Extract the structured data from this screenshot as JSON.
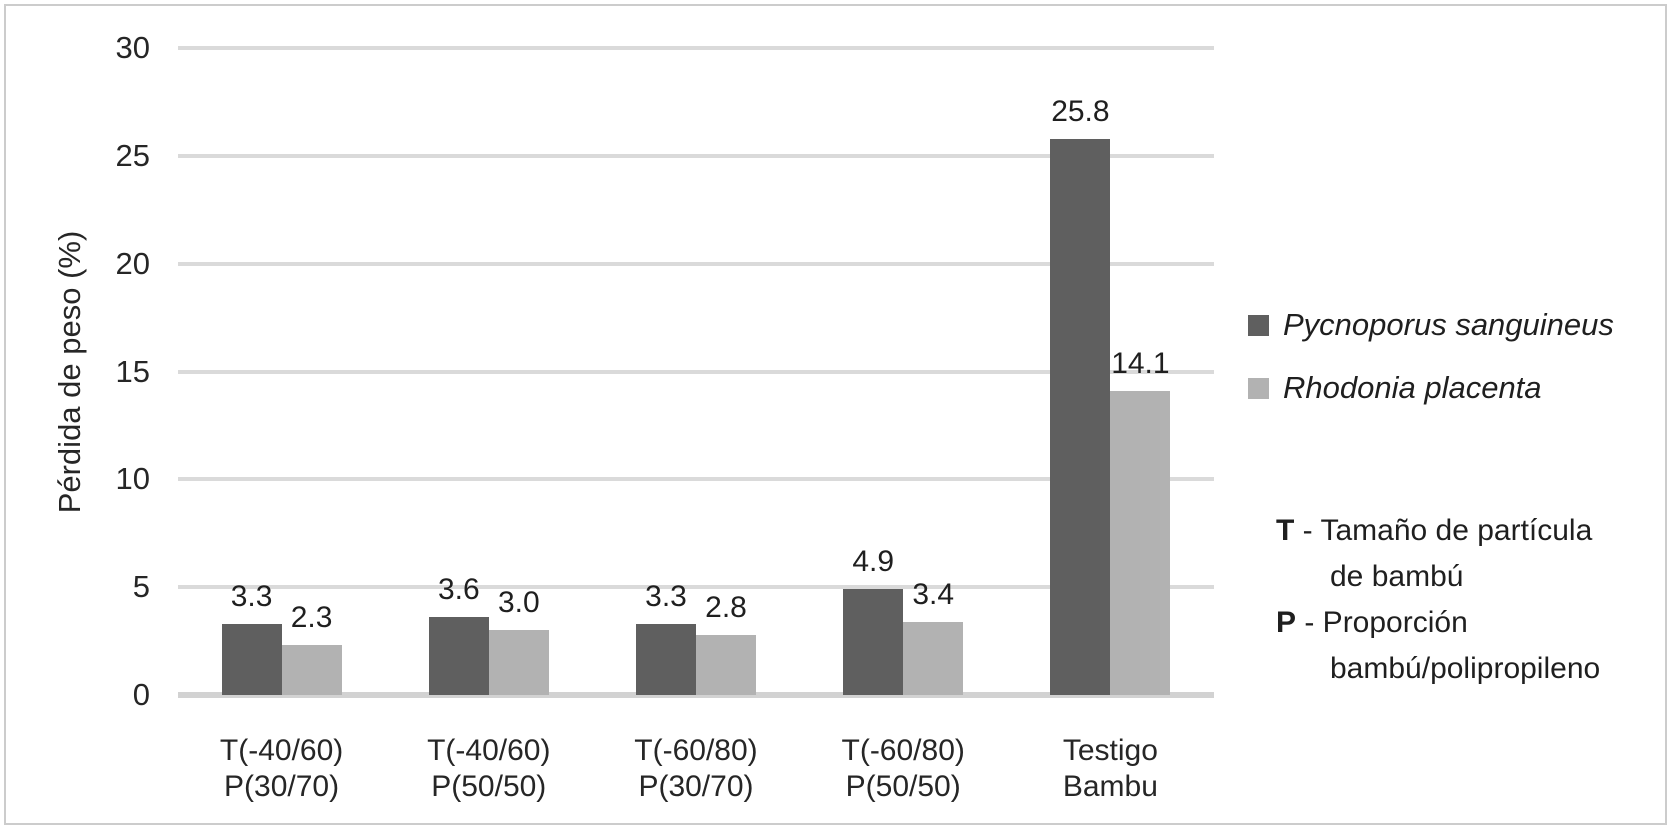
{
  "chart_data": {
    "type": "bar",
    "title": "",
    "xlabel": "",
    "ylabel": "Pérdida de peso (%)",
    "ylim": [
      0,
      30
    ],
    "ytick_step": 5,
    "grid": "horizontal",
    "legend_position": "right",
    "value_label_decimals": 1,
    "categories": [
      {
        "lines": [
          "T(-40/60)",
          "P(30/70)"
        ]
      },
      {
        "lines": [
          "T(-40/60)",
          "P(50/50)"
        ]
      },
      {
        "lines": [
          "T(-60/80)",
          "P(30/70)"
        ]
      },
      {
        "lines": [
          "T(-60/80)",
          "P(50/50)"
        ]
      },
      {
        "lines": [
          "Testigo",
          "Bambu"
        ]
      }
    ],
    "series": [
      {
        "name": "Pycnoporus sanguineus",
        "color": "#5F5F5F",
        "values": [
          3.3,
          3.6,
          3.3,
          4.9,
          25.8
        ]
      },
      {
        "name": "Rhodonia placenta",
        "color": "#B2B2B2",
        "values": [
          2.3,
          3.0,
          2.8,
          3.4,
          14.1
        ]
      }
    ]
  },
  "notes": {
    "items": [
      {
        "term": "T",
        "text1": "- Tamaño de partícula",
        "text2": "de bambú"
      },
      {
        "term": "P",
        "text1": "- Proporción",
        "text2": "bambú/polipropileno"
      }
    ]
  },
  "colors": {
    "series1": "#5F5F5F",
    "series2": "#B2B2B2",
    "gridline": "#DADADA",
    "axisline": "#D2D2D2",
    "frame_border": "#CCCCCC",
    "text": "#1F1F1F"
  }
}
